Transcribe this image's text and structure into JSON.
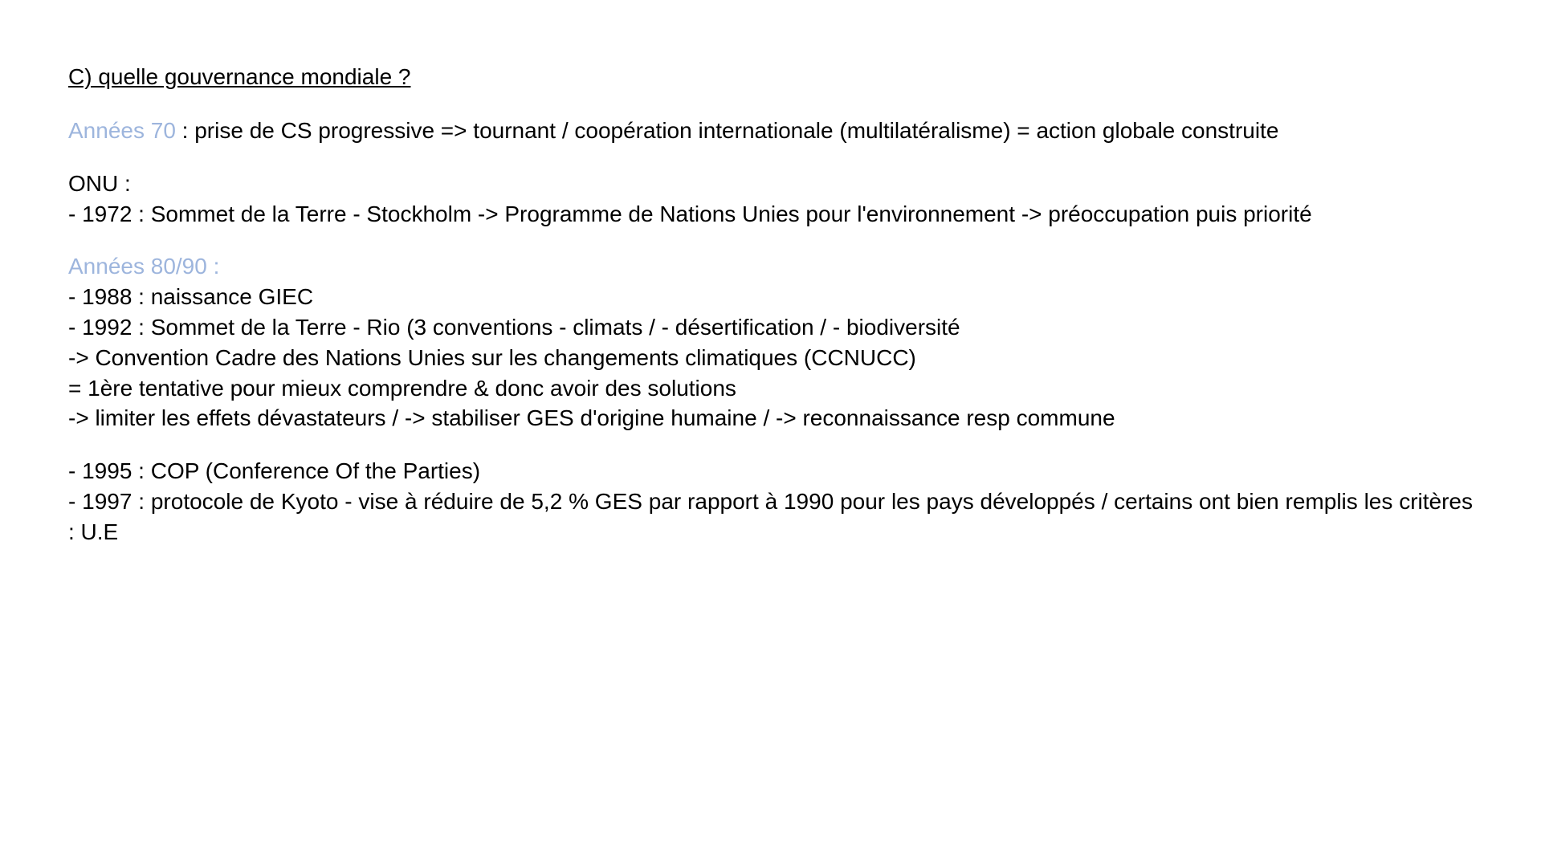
{
  "heading": "C) quelle gouvernance mondiale ?",
  "para1": {
    "highlight": "Années 70",
    "text": " : prise de CS progressive => tournant / coopération internationale (multilatéralisme) = action globale construite"
  },
  "para2": {
    "line1": "ONU :",
    "line2": "- 1972 : Sommet de la Terre - Stockholm -> Programme de Nations Unies pour l'environnement -> préoccupation puis priorité"
  },
  "para3": {
    "highlight": "Années 80/90 :",
    "line1": "- 1988 : naissance GIEC",
    "line2": "- 1992 : Sommet de la Terre - Rio (3 conventions - climats / - désertification / - biodiversité",
    "line3": "-> Convention Cadre des Nations Unies sur les changements climatiques (CCNUCC)",
    "line4": "= 1ère tentative pour mieux comprendre & donc avoir des solutions",
    "line5": "-> limiter les effets dévastateurs / -> stabiliser GES d'origine humaine / -> reconnaissance resp commune"
  },
  "para4": {
    "line1": "- 1995 : COP (Conference Of the Parties)",
    "line2": "- 1997 : protocole de Kyoto - vise à réduire de 5,2 % GES par rapport à 1990 pour les pays développés / certains ont bien remplis les critères : U.E"
  },
  "colors": {
    "background": "#ffffff",
    "text": "#000000",
    "highlight": "#9db5dd"
  },
  "typography": {
    "font_family": "Segoe UI, Arial, sans-serif",
    "font_size_pt": 21,
    "line_height": 1.35
  }
}
